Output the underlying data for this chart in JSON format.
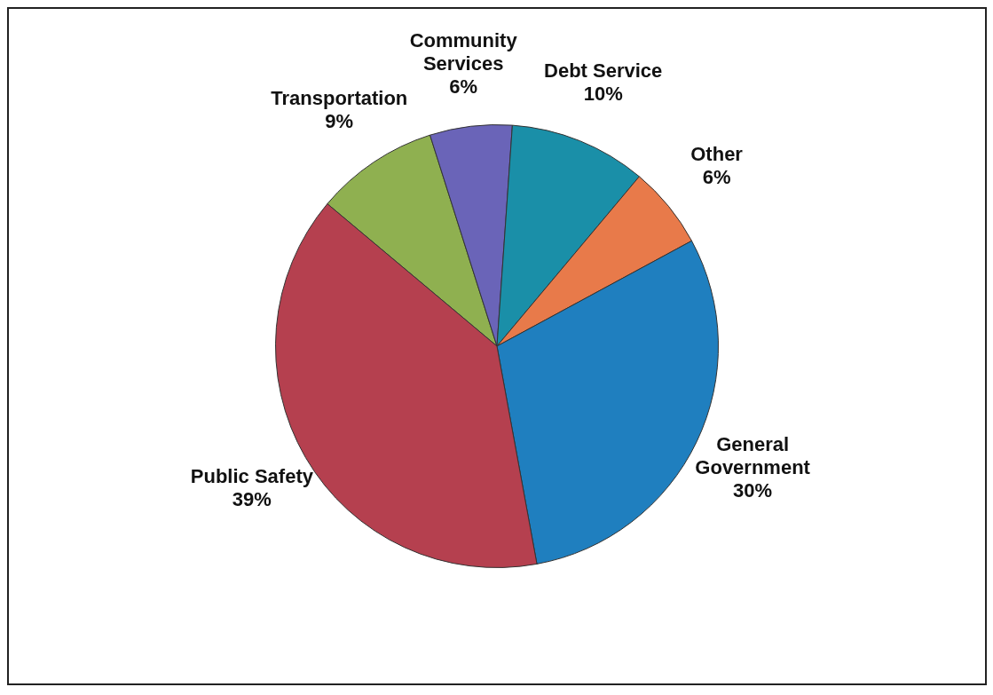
{
  "chart_data": {
    "type": "pie",
    "categories": [
      "Transportation",
      "Community Services",
      "Debt Service",
      "Other",
      "General Government",
      "Public Safety"
    ],
    "values": [
      9,
      6,
      10,
      6,
      30,
      39
    ],
    "value_labels": [
      "9%",
      "6%",
      "10%",
      "6%",
      "30%",
      "39%"
    ],
    "colors": [
      "#8fb050",
      "#6a64b8",
      "#1a8fa8",
      "#e87a4a",
      "#1f7fbf",
      "#b5404f"
    ],
    "legend": false
  }
}
